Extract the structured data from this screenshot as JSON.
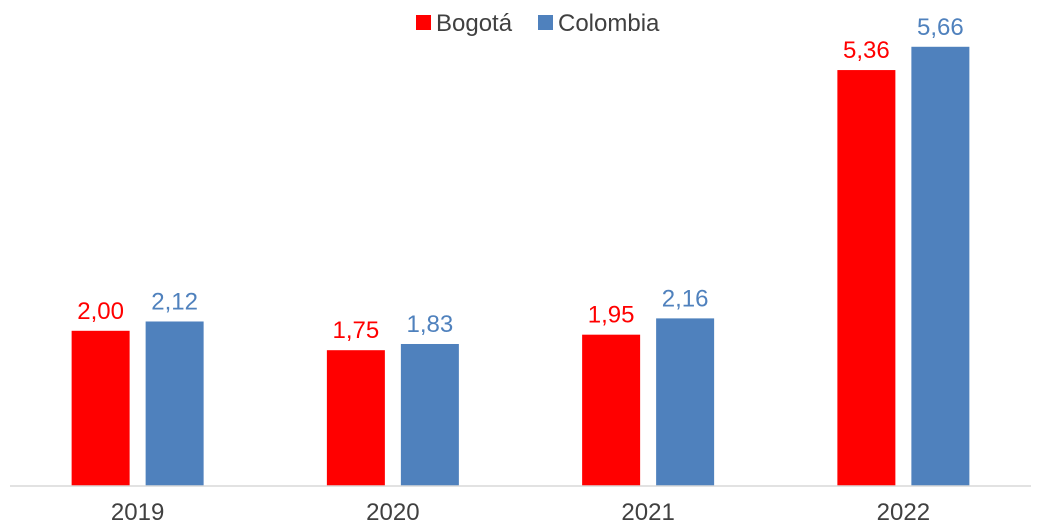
{
  "chart_data": {
    "type": "bar",
    "title": "",
    "xlabel": "",
    "ylabel": "",
    "categories": [
      "2019",
      "2020",
      "2021",
      "2022"
    ],
    "series": [
      {
        "name": "Bogotá",
        "color": "#ff0000",
        "values": [
          2.0,
          1.75,
          1.95,
          5.36
        ],
        "labels": [
          "2,00",
          "1,75",
          "1,95",
          "5,36"
        ]
      },
      {
        "name": "Colombia",
        "color": "#4f81bd",
        "values": [
          2.12,
          1.83,
          2.16,
          5.66
        ],
        "labels": [
          "2,12",
          "1,83",
          "2,16",
          "5,66"
        ]
      }
    ],
    "ylim": [
      0,
      6
    ],
    "grid": false,
    "legend_position": "top-center",
    "data_labels": true,
    "axis_color": "#d9d9d9"
  }
}
